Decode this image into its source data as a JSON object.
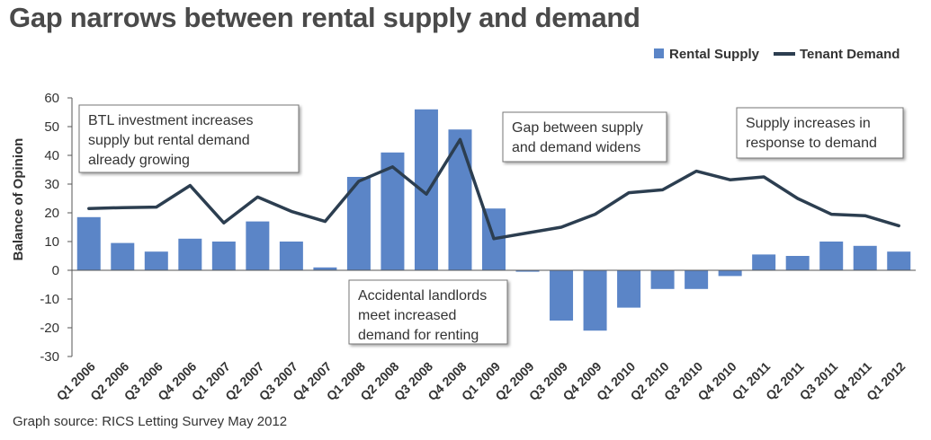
{
  "chart_data": {
    "type": "bar",
    "title": "Gap narrows between rental supply and demand",
    "ylabel": "Balance of Opinion",
    "xlabel": "",
    "ylim": [
      -30,
      60
    ],
    "yticks": [
      60,
      50,
      40,
      30,
      20,
      10,
      0,
      -10,
      -20,
      -30
    ],
    "grid": false,
    "legend_position": "top-right",
    "categories": [
      "Q1 2006",
      "Q2 2006",
      "Q3 2006",
      "Q4 2006",
      "Q1 2007",
      "Q2 2007",
      "Q3 2007",
      "Q4 2007",
      "Q1 2008",
      "Q2 2008",
      "Q3 2008",
      "Q4 2008",
      "Q1 2009",
      "Q2 2009",
      "Q3 2009",
      "Q4 2009",
      "Q1 2010",
      "Q2 2010",
      "Q3 2010",
      "Q4 2010",
      "Q1 2011",
      "Q2 2011",
      "Q3 2011",
      "Q4 2011",
      "Q1 2012"
    ],
    "series": [
      {
        "name": "Rental Supply",
        "kind": "bar",
        "color": "#5b85c7",
        "values": [
          18.5,
          9.5,
          6.5,
          11,
          10,
          17,
          10,
          1,
          32.5,
          41,
          56,
          49,
          21.5,
          -0.5,
          -17.5,
          -21,
          -13,
          -6.5,
          -6.5,
          -2,
          5.5,
          5,
          10,
          8.5,
          6.5
        ]
      },
      {
        "name": "Tenant Demand",
        "kind": "line",
        "color": "#2c3e50",
        "values": [
          21.5,
          21.8,
          22,
          29.5,
          16.5,
          25.5,
          20.5,
          17,
          31,
          36,
          26.5,
          45.5,
          11,
          13,
          15,
          19.5,
          27,
          28,
          34.5,
          31.5,
          32.5,
          25,
          19.5,
          19,
          15.5
        ]
      }
    ],
    "annotations": [
      {
        "id": "btl",
        "lines": [
          "BTL investment increases",
          "supply but rental demand",
          "already growing"
        ]
      },
      {
        "id": "accidental",
        "lines": [
          "Accidental landlords",
          "meet increased",
          "demand for renting"
        ]
      },
      {
        "id": "gap",
        "lines": [
          "Gap between supply",
          "and demand widens"
        ]
      },
      {
        "id": "response",
        "lines": [
          "Supply increases in",
          "response to demand"
        ]
      }
    ]
  },
  "source_note": "Graph source: RICS Letting Survey May 2012"
}
